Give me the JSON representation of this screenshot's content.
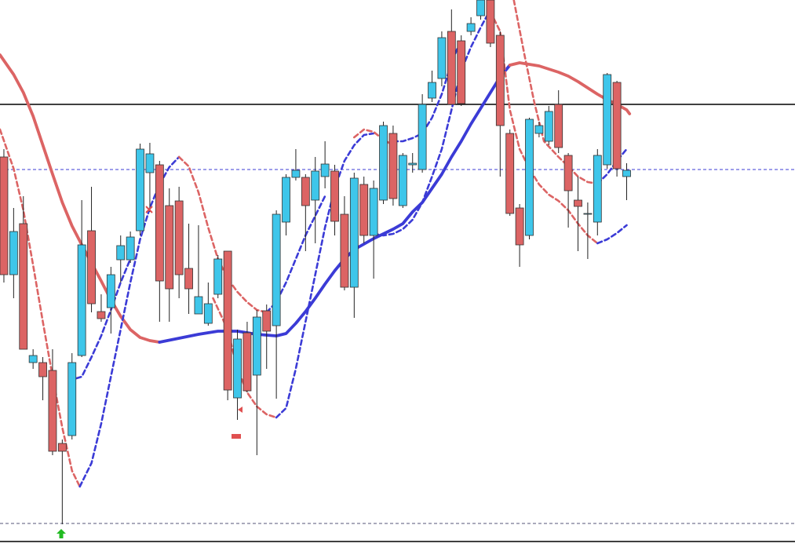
{
  "chart_data": {
    "type": "candlestick",
    "xlim": [
      -0.4,
      81.3
    ],
    "ylim": [
      0,
      697
    ],
    "up_color": "#3ec6ea",
    "down_color": "#dc6464",
    "open": [
      497,
      347,
      412,
      235,
      235,
      225,
      132,
      142,
      244,
      403,
      300,
      305,
      366,
      366,
      403,
      477,
      487,
      435,
      441,
      355,
      297,
      285,
      322,
      377,
      190,
      273,
      219,
      301,
      282,
      414,
      471,
      471,
      442,
      472,
      479,
      424,
      331,
      462,
      397,
      442,
      527,
      435,
      487,
      481,
      572,
      597,
      657,
      645,
      657,
      677,
      697,
      652,
      527,
      432,
      397,
      527,
      517,
      564,
      499,
      442,
      425,
      414,
      487,
      592,
      472
    ],
    "high": [
      507,
      432,
      447,
      252,
      242,
      252,
      137,
      247,
      442,
      459,
      322,
      357,
      397,
      402,
      514,
      515,
      492,
      457,
      459,
      412,
      410,
      337,
      372,
      377,
      277,
      287,
      302,
      309,
      429,
      475,
      507,
      475,
      497,
      517,
      487,
      447,
      477,
      472,
      467,
      542,
      537,
      502,
      502,
      577,
      607,
      657,
      685,
      652,
      675,
      697,
      697,
      657,
      532,
      437,
      547,
      542,
      562,
      582,
      502,
      472,
      439,
      507,
      604,
      594,
      489
    ],
    "low": [
      337,
      317,
      252,
      227,
      187,
      117,
      29,
      137,
      242,
      299,
      287,
      272,
      337,
      362,
      397,
      427,
      287,
      287,
      317,
      297,
      297,
      282,
      317,
      187,
      162,
      197,
      117,
      227,
      189,
      397,
      467,
      377,
      387,
      457,
      397,
      327,
      292,
      387,
      342,
      437,
      435,
      432,
      477,
      477,
      567,
      587,
      564,
      562,
      652,
      672,
      637,
      472,
      422,
      357,
      392,
      522,
      512,
      502,
      407,
      377,
      367,
      397,
      482,
      472,
      442
    ],
    "close": [
      347,
      402,
      252,
      244,
      217,
      122,
      122,
      235,
      385,
      310,
      291,
      347,
      384,
      395,
      507,
      501,
      339,
      329,
      347,
      329,
      319,
      310,
      367,
      200,
      265,
      199,
      293,
      275,
      424,
      471,
      480,
      435,
      479,
      488,
      415,
      331,
      470,
      397,
      457,
      537,
      444,
      499,
      489,
      564,
      592,
      649,
      564,
      565,
      667,
      697,
      642,
      537,
      425,
      385,
      545,
      537,
      555,
      509,
      454,
      434,
      425,
      499,
      602,
      482,
      480
    ],
    "lines": [
      {
        "color": "#dc6464",
        "dashed": false,
        "x": [
          -0.4,
          1,
          2,
          3,
          4,
          5,
          6,
          7,
          8,
          9,
          10,
          11,
          12,
          13,
          14,
          15,
          16
        ],
        "values": [
          627,
          602,
          579,
          549,
          512,
          475,
          439,
          409,
          385,
          362,
          339,
          315,
          294,
          277,
          267,
          263,
          261
        ]
      },
      {
        "color": "#3b3bd6",
        "dashed": false,
        "x": [
          16,
          18,
          20,
          22,
          24,
          26,
          28,
          29,
          30,
          31,
          32,
          33,
          34,
          35,
          36,
          38,
          40,
          41,
          42,
          43,
          44,
          45,
          46,
          47,
          48,
          49,
          50,
          51,
          52
        ],
        "values": [
          261,
          266,
          271,
          275,
          275,
          271,
          269,
          272,
          285,
          300,
          317,
          335,
          352,
          367,
          379,
          393,
          405,
          412,
          427,
          439,
          457,
          475,
          497,
          517,
          539,
          559,
          579,
          599,
          614
        ]
      },
      {
        "color": "#dc6464",
        "dashed": false,
        "x": [
          52,
          53,
          55,
          57,
          58,
          59,
          60,
          61,
          62,
          63,
          64,
          64.3
        ],
        "values": [
          614,
          617,
          613,
          605,
          600,
          593,
          585,
          577,
          570,
          564,
          557,
          552
        ]
      },
      {
        "color": "#dc6464",
        "dashed": true,
        "x": [
          -0.4,
          1,
          2,
          3,
          4,
          5,
          6,
          7,
          7.8
        ],
        "values": [
          532,
          482,
          429,
          359,
          287,
          217,
          152,
          97,
          77
        ]
      },
      {
        "color": "#3b3bd6",
        "dashed": true,
        "x": [
          7.8,
          9,
          10,
          11,
          12,
          13,
          14,
          15,
          16,
          17,
          18
        ],
        "values": [
          77,
          107,
          157,
          217,
          277,
          337,
          392,
          432,
          462,
          484,
          497
        ]
      },
      {
        "color": "#3b3bd6",
        "dashed": true,
        "x": [
          6.7,
          8,
          9,
          10,
          11,
          12,
          13
        ],
        "values": [
          212,
          217,
          242,
          269,
          302,
          337,
          367
        ]
      },
      {
        "color": "#dc6464",
        "dashed": true,
        "x": [
          18,
          19,
          20,
          21,
          22,
          23,
          24,
          25,
          26,
          27
        ],
        "values": [
          497,
          485,
          452,
          407,
          367,
          342,
          325,
          312,
          302,
          299
        ]
      },
      {
        "color": "#dc6464",
        "dashed": true,
        "x": [
          21.5,
          23,
          24,
          25,
          26,
          27,
          28
        ],
        "values": [
          317,
          277,
          227,
          197,
          179,
          169,
          165
        ]
      },
      {
        "color": "#3b3bd6",
        "dashed": true,
        "x": [
          28,
          29,
          30,
          31,
          32,
          33,
          34,
          35,
          36,
          37,
          38
        ],
        "values": [
          165,
          177,
          227,
          287,
          347,
          407,
          457,
          492,
          512,
          525,
          527
        ]
      },
      {
        "color": "#3b3bd6",
        "dashed": true,
        "x": [
          27,
          28,
          29,
          30,
          31,
          32,
          33
        ],
        "values": [
          299,
          312,
          337,
          367,
          397,
          422,
          447
        ]
      },
      {
        "color": "#dc6464",
        "dashed": true,
        "x": [
          36,
          37,
          38,
          39,
          40
        ],
        "values": [
          522,
          532,
          529,
          519,
          512
        ]
      },
      {
        "color": "#3b3bd6",
        "dashed": true,
        "x": [
          38,
          39,
          40,
          41,
          42,
          43,
          44,
          45,
          46,
          47,
          48,
          49,
          50
        ],
        "values": [
          399,
          397,
          399,
          405,
          417,
          439,
          472,
          507,
          557,
          607,
          637,
          662,
          685
        ]
      },
      {
        "color": "#3b3bd6",
        "dashed": true,
        "x": [
          40,
          41,
          42,
          43,
          44,
          45,
          46,
          47
        ],
        "values": [
          517,
          517,
          521,
          527,
          547,
          577,
          617,
          647
        ]
      },
      {
        "color": "#dc6464",
        "dashed": true,
        "x": [
          52.4,
          53.5,
          54.5,
          55.5,
          57,
          58,
          59,
          60,
          61
        ],
        "values": [
          697,
          627,
          567,
          517,
          497,
          485,
          472,
          465,
          463
        ]
      },
      {
        "color": "#dc6464",
        "dashed": true,
        "x": [
          50,
          51,
          52,
          53,
          54,
          55,
          56,
          57,
          58,
          59,
          60,
          61
        ],
        "values": [
          682,
          657,
          557,
          507,
          482,
          462,
          449,
          441,
          429,
          412,
          397,
          387
        ]
      },
      {
        "color": "#3b3bd6",
        "dashed": true,
        "x": [
          61,
          62,
          63,
          64
        ],
        "values": [
          463,
          475,
          492,
          507
        ]
      },
      {
        "color": "#3b3bd6",
        "dashed": true,
        "x": [
          61,
          62,
          63,
          64
        ],
        "values": [
          387,
          392,
          400,
          410
        ]
      }
    ],
    "hlines": [
      {
        "value": 564,
        "color": "#000000",
        "dashed": false
      },
      {
        "value": 481,
        "color": "#3b3bd6",
        "dashed": true
      },
      {
        "value": 30,
        "color": "#555577",
        "dashed": true
      },
      {
        "value": 7,
        "color": "#000000",
        "dashed": false
      }
    ]
  }
}
